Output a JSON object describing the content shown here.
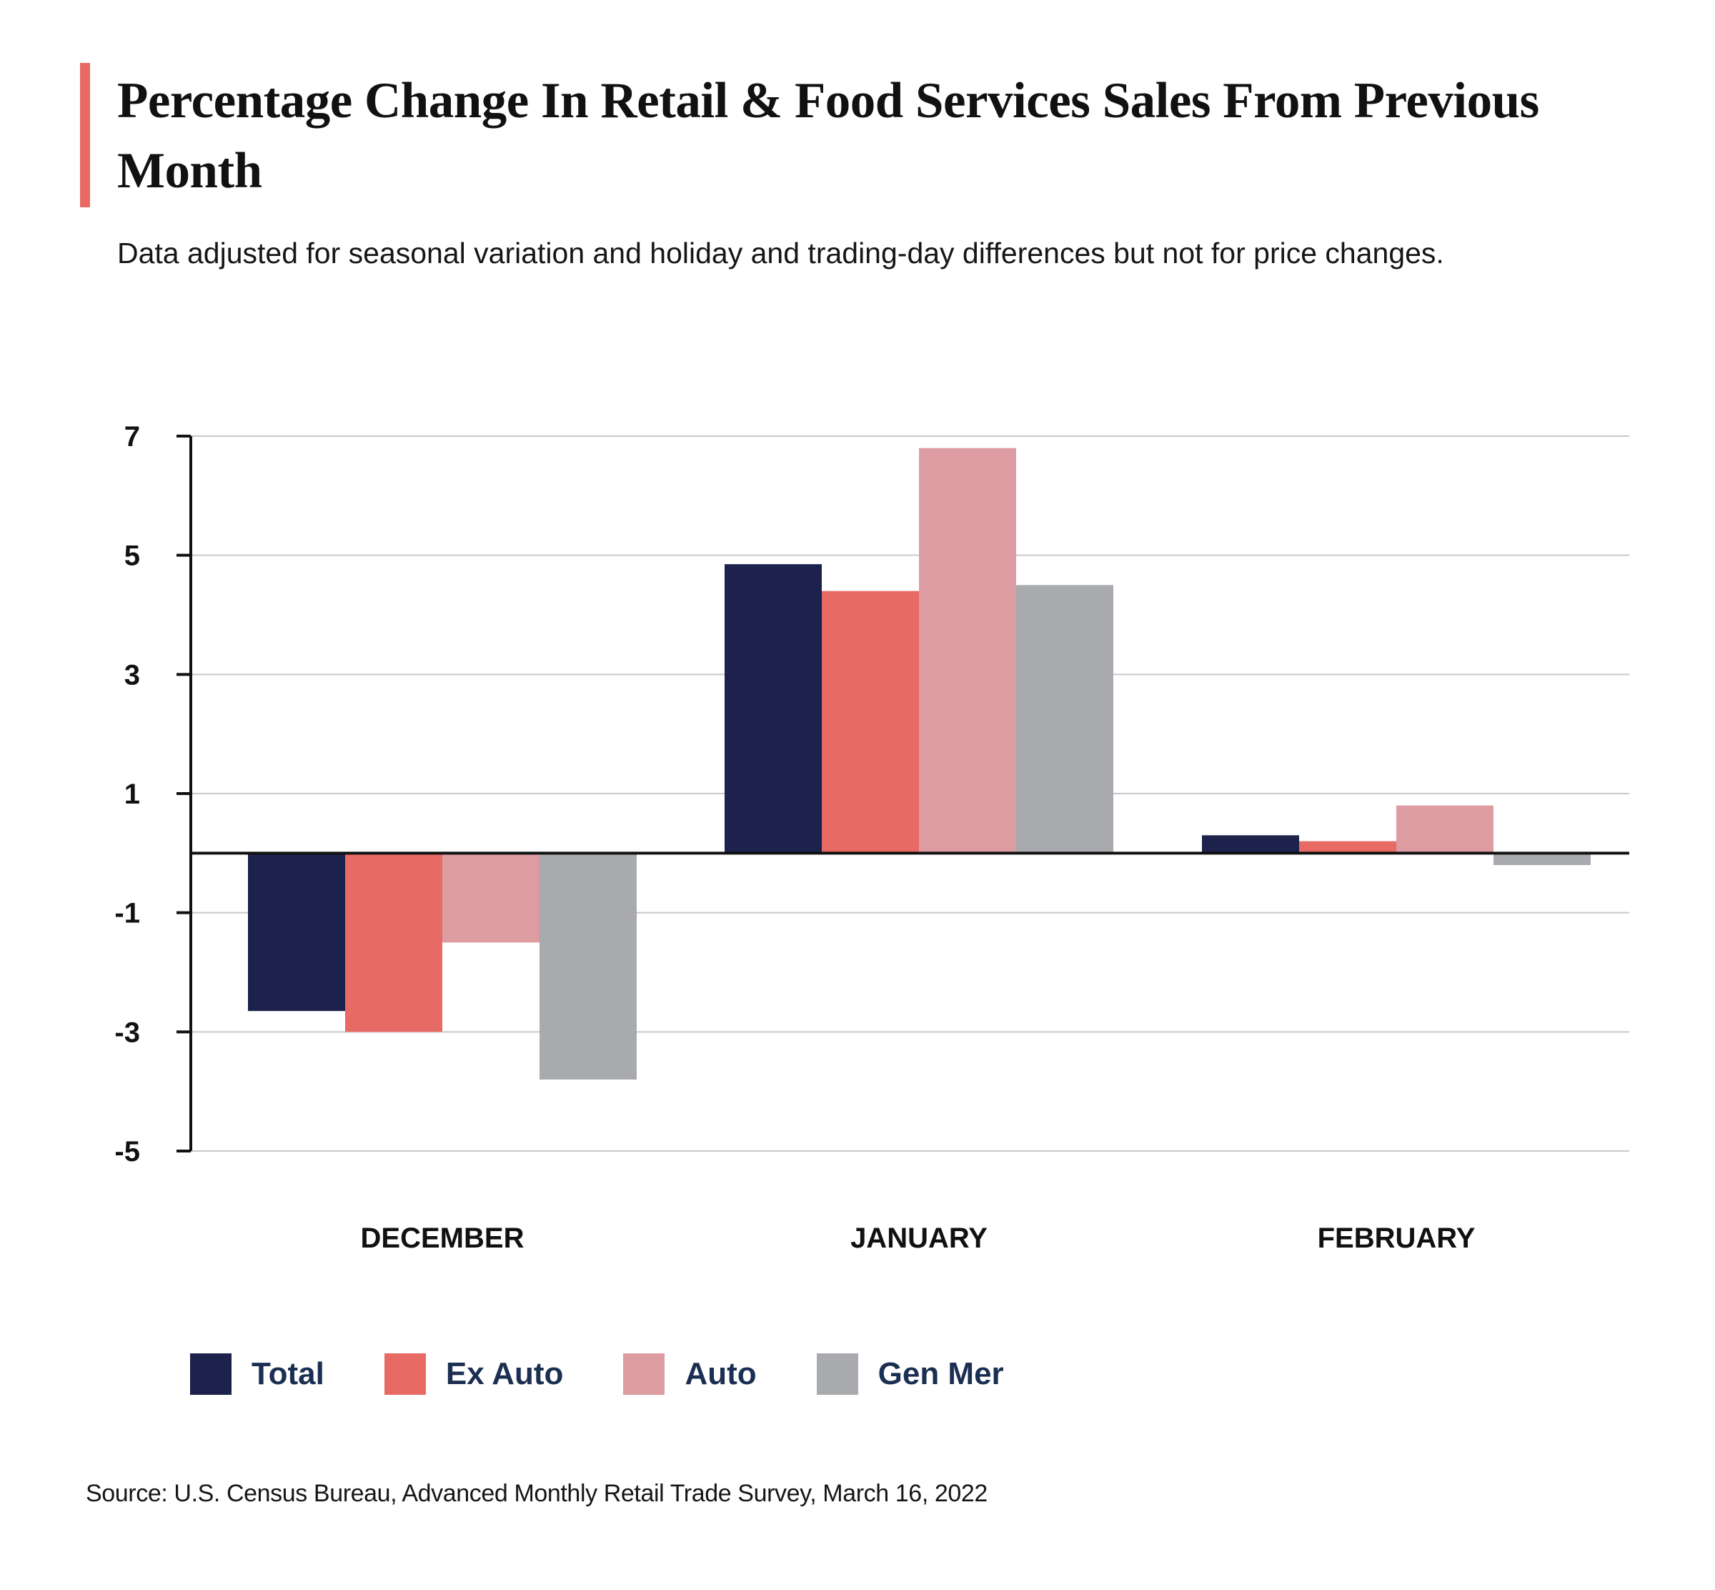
{
  "title": "Percentage Change In Retail & Food Services Sales From Previous Month",
  "subtitle": "Data adjusted for seasonal variation and holiday and trading-day differences but not for price changes.",
  "source": "Source: U.S. Census Bureau, Advanced Monthly Retail Trade Survey, March 16, 2022",
  "colors": {
    "accent": "#e86a64",
    "total": "#1c224c",
    "ex_auto": "#e86a64",
    "auto": "#dd9ca2",
    "gen_mer": "#a9aaad",
    "legend_text": "#1b2f52",
    "grid": "#c9c9c9",
    "axis": "#111111"
  },
  "chart_data": {
    "type": "bar",
    "categories": [
      "DECEMBER",
      "JANUARY",
      "FEBRUARY"
    ],
    "series": [
      {
        "name": "Total",
        "color": "#1c224c",
        "values": [
          -2.65,
          4.85,
          0.3
        ]
      },
      {
        "name": "Ex Auto",
        "color": "#e86a64",
        "values": [
          -3.0,
          4.4,
          0.2
        ]
      },
      {
        "name": "Auto",
        "color": "#dd9ca2",
        "values": [
          -1.5,
          6.8,
          0.8
        ]
      },
      {
        "name": "Gen Mer",
        "color": "#a9aaad",
        "values": [
          -3.8,
          4.5,
          -0.2
        ]
      }
    ],
    "ylim": [
      -5,
      7
    ],
    "yticks": [
      7,
      5,
      3,
      1,
      -1,
      -3,
      -5
    ],
    "grid": true,
    "legend": "bottom-left"
  }
}
